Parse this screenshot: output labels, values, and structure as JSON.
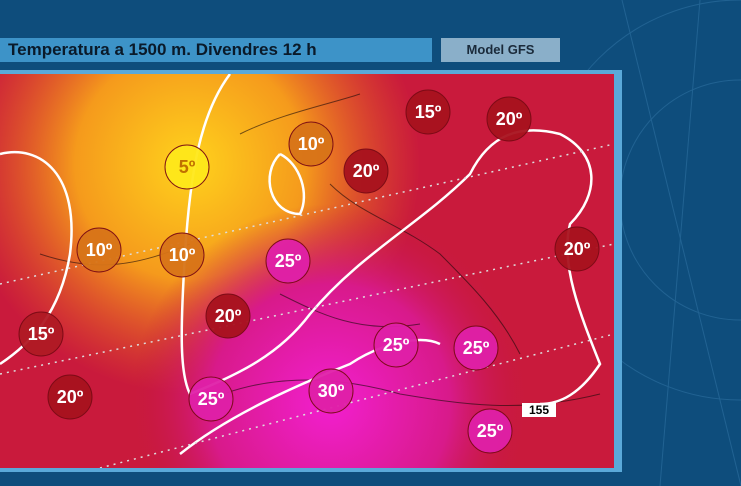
{
  "header": {
    "title": "Temperatura a 1500 m.  Divendres 12 h",
    "model": "Model GFS"
  },
  "map": {
    "contour_label": "155",
    "labels": [
      "5º",
      "10º",
      "15º",
      "20º",
      "20º",
      "10º",
      "10º",
      "25º",
      "20º",
      "20º",
      "15º",
      "25º",
      "25º",
      "20º",
      "25º",
      "30º",
      "25º"
    ]
  }
}
